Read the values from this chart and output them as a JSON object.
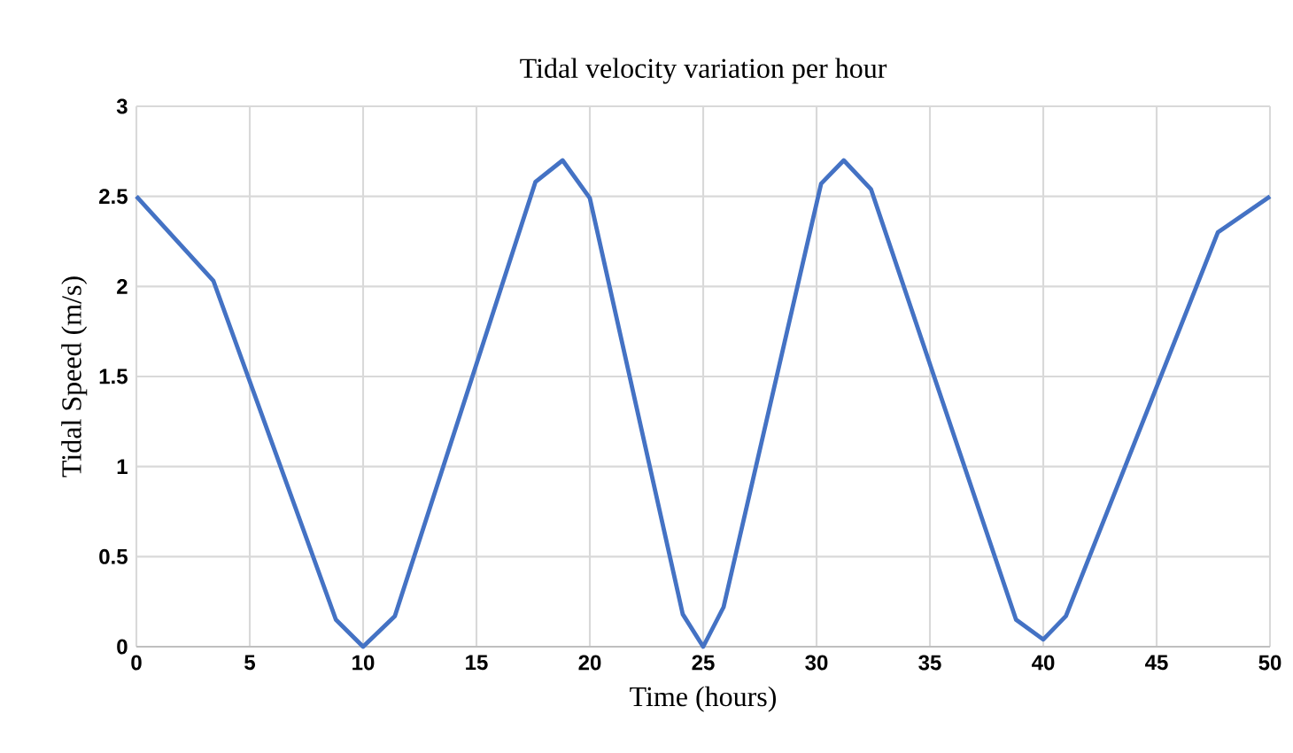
{
  "chart_data": {
    "type": "line",
    "title": "Tidal velocity variation per hour",
    "xlabel": "Time (hours)",
    "ylabel": "Tidal Speed (m/s)",
    "x": [
      0,
      3.4,
      8.8,
      10,
      11.4,
      17.6,
      18.8,
      20,
      24.1,
      25,
      25.9,
      30.2,
      31.2,
      32.4,
      38.8,
      40,
      41,
      47.7,
      50
    ],
    "series": [
      {
        "color": "#4472c4",
        "values": [
          2.5,
          2.03,
          0.15,
          0,
          0.17,
          2.58,
          2.7,
          2.49,
          0.18,
          0,
          0.22,
          2.57,
          2.7,
          2.54,
          0.15,
          0.04,
          0.17,
          2.3,
          2.5
        ]
      }
    ],
    "xlim": [
      0,
      50
    ],
    "ylim": [
      0,
      3
    ],
    "xticks": [
      0,
      5,
      10,
      15,
      20,
      25,
      30,
      35,
      40,
      45,
      50
    ],
    "yticks": [
      0,
      0.5,
      1,
      1.5,
      2,
      2.5,
      3
    ],
    "grid": true,
    "marker": "none",
    "line_style": "solid"
  }
}
